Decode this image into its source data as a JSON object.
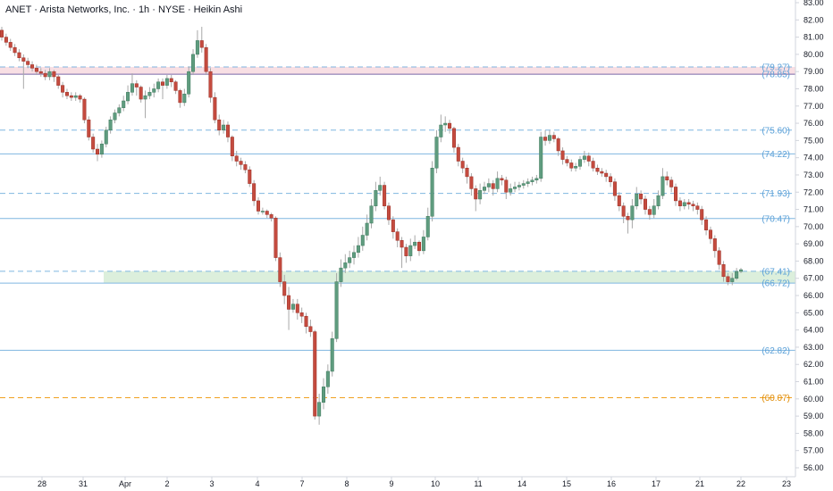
{
  "header": {
    "title": "ANET · Arista Networks, Inc. · 1h · NYSE · Heikin Ashi"
  },
  "colors": {
    "up": "#5f9c7f",
    "down": "#c44b3f",
    "wick": "#a8a8a8",
    "blue_line": "#7fb6e0",
    "orange_line": "#f0a020",
    "resistance_zone": "#f8dfe4",
    "support_zone": "#dcefdc",
    "axis_text": "#131722",
    "purple_line": "#7b68a8"
  },
  "chart_data": {
    "type": "candlestick",
    "title": "ANET · Arista Networks, Inc. · 1h · NYSE · Heikin Ashi",
    "ylim": [
      56.0,
      83.0
    ],
    "y_ticks": [
      "83.00",
      "82.00",
      "81.00",
      "80.00",
      "79.00",
      "78.00",
      "77.00",
      "76.00",
      "75.00",
      "74.00",
      "73.00",
      "72.00",
      "71.00",
      "70.00",
      "69.00",
      "68.00",
      "67.00",
      "66.00",
      "65.00",
      "64.00",
      "63.00",
      "62.00",
      "61.00",
      "60.00",
      "59.00",
      "58.00",
      "57.00",
      "56.00"
    ],
    "x_ticks": [
      "28",
      "31",
      "Apr",
      "2",
      "3",
      "4",
      "7",
      "8",
      "9",
      "10",
      "11",
      "14",
      "15",
      "16",
      "17",
      "21",
      "22",
      "23"
    ],
    "levels": [
      {
        "value": 79.27,
        "label": "(79.27)",
        "style": "dashed",
        "color": "blue"
      },
      {
        "value": 78.85,
        "label": "(78.85)",
        "style": "solid",
        "color": "purple"
      },
      {
        "value": 75.6,
        "label": "(75.60)",
        "style": "dashed",
        "color": "blue"
      },
      {
        "value": 74.22,
        "label": "(74.22)",
        "style": "solid",
        "color": "blue"
      },
      {
        "value": 71.93,
        "label": "(71.93)",
        "style": "dashed",
        "color": "blue"
      },
      {
        "value": 70.47,
        "label": "(70.47)",
        "style": "solid",
        "color": "blue"
      },
      {
        "value": 67.41,
        "label": "(67.41)",
        "style": "dashed",
        "color": "blue"
      },
      {
        "value": 66.72,
        "label": "(66.72)",
        "style": "solid",
        "color": "blue"
      },
      {
        "value": 62.82,
        "label": "(62.82)",
        "style": "solid",
        "color": "blue"
      },
      {
        "value": 60.07,
        "label": "(60.07)",
        "style": "dashed",
        "color": "orange"
      }
    ],
    "zones": [
      {
        "from": 78.85,
        "to": 79.27,
        "kind": "resistance",
        "start_x": "chart-start"
      },
      {
        "from": 66.72,
        "to": 67.41,
        "kind": "support",
        "start_x": "31"
      }
    ],
    "candles": [
      [
        81.4,
        81.0,
        81.6,
        80.8
      ],
      [
        81.0,
        80.7,
        81.2,
        80.5
      ],
      [
        80.7,
        80.4,
        80.9,
        80.2
      ],
      [
        80.4,
        80.1,
        80.6,
        79.9
      ],
      [
        80.1,
        79.8,
        80.3,
        79.6
      ],
      [
        79.8,
        79.6,
        80.0,
        78.0
      ],
      [
        79.6,
        79.4,
        79.8,
        79.2
      ],
      [
        79.4,
        79.2,
        79.6,
        79.0
      ],
      [
        79.2,
        79.0,
        79.4,
        78.8
      ],
      [
        79.0,
        78.9,
        79.2,
        78.7
      ],
      [
        78.9,
        78.7,
        79.1,
        78.5
      ],
      [
        78.7,
        79.0,
        79.2,
        78.5
      ],
      [
        79.0,
        78.7,
        79.1,
        78.4
      ],
      [
        78.7,
        78.2,
        78.8,
        78.0
      ],
      [
        78.2,
        77.8,
        78.4,
        77.5
      ],
      [
        77.8,
        77.6,
        78.0,
        77.4
      ],
      [
        77.6,
        77.5,
        77.8,
        77.3
      ],
      [
        77.5,
        77.6,
        77.8,
        77.3
      ],
      [
        77.6,
        77.4,
        77.7,
        77.2
      ],
      [
        77.4,
        76.2,
        77.5,
        76.0
      ],
      [
        76.2,
        75.2,
        76.4,
        75.0
      ],
      [
        75.2,
        74.5,
        75.4,
        74.3
      ],
      [
        74.5,
        74.2,
        74.8,
        73.8
      ],
      [
        74.2,
        74.8,
        75.0,
        74.0
      ],
      [
        74.8,
        75.6,
        75.8,
        74.6
      ],
      [
        75.6,
        76.2,
        76.4,
        75.4
      ],
      [
        76.2,
        76.6,
        76.8,
        76.0
      ],
      [
        76.6,
        76.9,
        77.1,
        76.4
      ],
      [
        76.9,
        77.3,
        77.6,
        76.7
      ],
      [
        77.3,
        77.8,
        78.2,
        77.1
      ],
      [
        77.8,
        78.3,
        78.9,
        77.6
      ],
      [
        78.3,
        78.1,
        78.5,
        77.6
      ],
      [
        78.1,
        77.4,
        78.2,
        77.2
      ],
      [
        77.4,
        77.6,
        77.9,
        76.3
      ],
      [
        77.6,
        77.8,
        78.1,
        77.4
      ],
      [
        77.8,
        78.0,
        78.3,
        77.5
      ],
      [
        78.0,
        78.4,
        78.6,
        77.8
      ],
      [
        78.4,
        78.2,
        78.6,
        77.4
      ],
      [
        78.2,
        78.6,
        78.8,
        78.0
      ],
      [
        78.6,
        78.4,
        78.8,
        78.1
      ],
      [
        78.4,
        77.9,
        78.5,
        77.7
      ],
      [
        77.9,
        77.2,
        78.0,
        76.9
      ],
      [
        77.2,
        77.7,
        78.0,
        77.0
      ],
      [
        77.7,
        79.0,
        79.3,
        77.5
      ],
      [
        79.0,
        80.0,
        80.3,
        78.8
      ],
      [
        80.0,
        80.8,
        81.4,
        79.8
      ],
      [
        80.8,
        80.4,
        81.6,
        80.1
      ],
      [
        80.4,
        79.0,
        80.6,
        78.8
      ],
      [
        79.0,
        77.5,
        79.2,
        77.2
      ],
      [
        77.5,
        76.2,
        77.8,
        76.0
      ],
      [
        76.2,
        75.6,
        76.5,
        75.3
      ],
      [
        75.6,
        75.9,
        76.2,
        75.4
      ],
      [
        75.9,
        75.2,
        76.1,
        74.9
      ],
      [
        75.2,
        74.1,
        75.3,
        73.8
      ],
      [
        74.1,
        73.8,
        74.4,
        73.5
      ],
      [
        73.8,
        73.6,
        74.0,
        73.3
      ],
      [
        73.6,
        73.3,
        73.8,
        73.1
      ],
      [
        73.3,
        72.5,
        73.5,
        72.3
      ],
      [
        72.5,
        71.5,
        72.7,
        71.2
      ],
      [
        71.5,
        70.9,
        71.7,
        70.7
      ],
      [
        70.9,
        70.9,
        71.1,
        70.7
      ],
      [
        70.9,
        70.7,
        71.0,
        70.5
      ],
      [
        70.7,
        70.5,
        70.8,
        70.3
      ],
      [
        70.5,
        68.2,
        70.6,
        68.0
      ],
      [
        68.2,
        66.8,
        68.5,
        66.5
      ],
      [
        66.8,
        66.0,
        67.2,
        65.5
      ],
      [
        66.0,
        65.2,
        66.5,
        64.0
      ],
      [
        65.2,
        65.5,
        65.8,
        65.0
      ],
      [
        65.5,
        65.0,
        65.8,
        64.6
      ],
      [
        65.0,
        64.8,
        65.3,
        64.4
      ],
      [
        64.8,
        64.2,
        65.0,
        63.8
      ],
      [
        64.2,
        63.9,
        64.6,
        63.6
      ],
      [
        63.9,
        59.0,
        64.0,
        58.8
      ],
      [
        59.0,
        59.8,
        60.3,
        58.5
      ],
      [
        59.8,
        60.7,
        61.2,
        59.4
      ],
      [
        60.7,
        61.6,
        62.0,
        60.3
      ],
      [
        61.6,
        63.5,
        63.9,
        61.3
      ],
      [
        63.5,
        66.8,
        67.3,
        63.3
      ],
      [
        66.8,
        67.6,
        68.1,
        66.5
      ],
      [
        67.6,
        67.9,
        68.4,
        67.3
      ],
      [
        67.9,
        68.2,
        68.6,
        67.6
      ],
      [
        68.2,
        68.5,
        68.9,
        67.8
      ],
      [
        68.5,
        68.9,
        69.4,
        68.2
      ],
      [
        68.9,
        69.5,
        70.0,
        68.6
      ],
      [
        69.5,
        70.2,
        70.7,
        69.2
      ],
      [
        70.2,
        71.2,
        71.6,
        69.9
      ],
      [
        71.2,
        72.1,
        72.6,
        70.9
      ],
      [
        72.1,
        72.4,
        72.9,
        71.8
      ],
      [
        72.4,
        71.2,
        72.6,
        71.0
      ],
      [
        71.2,
        70.4,
        71.4,
        70.1
      ],
      [
        70.4,
        69.7,
        70.6,
        69.3
      ],
      [
        69.7,
        69.2,
        69.9,
        68.8
      ],
      [
        69.2,
        68.8,
        69.4,
        67.6
      ],
      [
        68.8,
        68.3,
        69.0,
        67.9
      ],
      [
        68.3,
        68.9,
        69.3,
        68.0
      ],
      [
        68.9,
        69.1,
        69.5,
        68.7
      ],
      [
        69.1,
        68.6,
        69.2,
        68.3
      ],
      [
        68.6,
        69.4,
        69.8,
        68.4
      ],
      [
        69.4,
        70.6,
        71.1,
        69.2
      ],
      [
        70.6,
        73.4,
        73.8,
        70.3
      ],
      [
        73.4,
        75.2,
        75.6,
        73.1
      ],
      [
        75.2,
        75.9,
        76.5,
        74.9
      ],
      [
        75.9,
        76.0,
        76.4,
        75.5
      ],
      [
        76.0,
        75.7,
        76.2,
        75.4
      ],
      [
        75.7,
        74.6,
        75.8,
        74.3
      ],
      [
        74.6,
        73.8,
        74.8,
        73.5
      ],
      [
        73.8,
        73.4,
        74.0,
        73.1
      ],
      [
        73.4,
        72.9,
        73.6,
        72.5
      ],
      [
        72.9,
        72.2,
        73.1,
        71.8
      ],
      [
        72.2,
        71.6,
        72.4,
        70.9
      ],
      [
        71.6,
        72.1,
        72.5,
        71.3
      ],
      [
        72.1,
        72.3,
        72.6,
        71.9
      ],
      [
        72.3,
        72.5,
        72.8,
        72.0
      ],
      [
        72.5,
        72.2,
        72.7,
        71.8
      ],
      [
        72.2,
        72.8,
        73.2,
        72.0
      ],
      [
        72.8,
        72.7,
        73.0,
        72.4
      ],
      [
        72.7,
        72.0,
        72.9,
        71.6
      ],
      [
        72.0,
        72.2,
        72.5,
        71.8
      ],
      [
        72.2,
        72.3,
        72.6,
        72.0
      ],
      [
        72.3,
        72.4,
        72.6,
        72.1
      ],
      [
        72.4,
        72.5,
        72.7,
        72.2
      ],
      [
        72.5,
        72.6,
        72.8,
        72.3
      ],
      [
        72.6,
        72.7,
        72.9,
        72.4
      ],
      [
        72.7,
        72.8,
        73.0,
        72.5
      ],
      [
        72.8,
        75.2,
        75.5,
        72.6
      ],
      [
        75.2,
        75.0,
        75.6,
        74.7
      ],
      [
        75.0,
        75.3,
        75.6,
        74.8
      ],
      [
        75.3,
        75.1,
        75.5,
        74.9
      ],
      [
        75.1,
        74.4,
        75.2,
        74.1
      ],
      [
        74.4,
        73.9,
        74.6,
        73.6
      ],
      [
        73.9,
        73.7,
        74.1,
        73.5
      ],
      [
        73.7,
        73.4,
        73.9,
        73.2
      ],
      [
        73.4,
        73.5,
        73.7,
        73.2
      ],
      [
        73.5,
        73.9,
        74.1,
        73.3
      ],
      [
        73.9,
        74.1,
        74.4,
        73.7
      ],
      [
        74.1,
        73.8,
        74.3,
        73.5
      ],
      [
        73.8,
        73.4,
        74.0,
        73.2
      ],
      [
        73.4,
        73.2,
        73.6,
        73.0
      ],
      [
        73.2,
        73.1,
        73.4,
        72.9
      ],
      [
        73.1,
        72.9,
        73.3,
        72.6
      ],
      [
        72.9,
        72.6,
        73.1,
        72.3
      ],
      [
        72.6,
        71.8,
        72.8,
        71.5
      ],
      [
        71.8,
        71.2,
        72.0,
        70.9
      ],
      [
        71.2,
        70.6,
        71.4,
        70.2
      ],
      [
        70.6,
        70.4,
        70.8,
        69.6
      ],
      [
        70.4,
        71.2,
        71.6,
        69.9
      ],
      [
        71.2,
        71.9,
        72.3,
        71.0
      ],
      [
        71.9,
        71.6,
        72.1,
        71.3
      ],
      [
        71.6,
        71.0,
        71.8,
        70.7
      ],
      [
        71.0,
        70.7,
        71.2,
        70.4
      ],
      [
        70.7,
        71.2,
        71.6,
        70.5
      ],
      [
        71.2,
        71.8,
        72.1,
        71.0
      ],
      [
        71.8,
        72.9,
        73.4,
        71.6
      ],
      [
        72.9,
        72.7,
        73.2,
        72.4
      ],
      [
        72.7,
        72.3,
        72.9,
        72.0
      ],
      [
        72.3,
        71.5,
        72.5,
        71.2
      ],
      [
        71.5,
        71.2,
        71.7,
        70.9
      ],
      [
        71.2,
        71.4,
        71.6,
        71.0
      ],
      [
        71.4,
        71.3,
        71.6,
        71.0
      ],
      [
        71.3,
        71.2,
        71.5,
        70.9
      ],
      [
        71.2,
        71.0,
        71.4,
        70.7
      ],
      [
        71.0,
        70.4,
        71.2,
        70.1
      ],
      [
        70.4,
        69.8,
        70.6,
        69.5
      ],
      [
        69.8,
        69.3,
        70.0,
        69.0
      ],
      [
        69.3,
        68.6,
        69.5,
        68.2
      ],
      [
        68.6,
        67.8,
        68.8,
        67.5
      ],
      [
        67.8,
        67.1,
        68.0,
        66.8
      ],
      [
        67.1,
        66.8,
        67.3,
        66.6
      ],
      [
        66.8,
        67.0,
        67.3,
        66.6
      ],
      [
        67.0,
        67.4,
        67.6,
        66.9
      ],
      [
        67.4,
        67.5,
        67.6,
        67.3
      ]
    ]
  }
}
